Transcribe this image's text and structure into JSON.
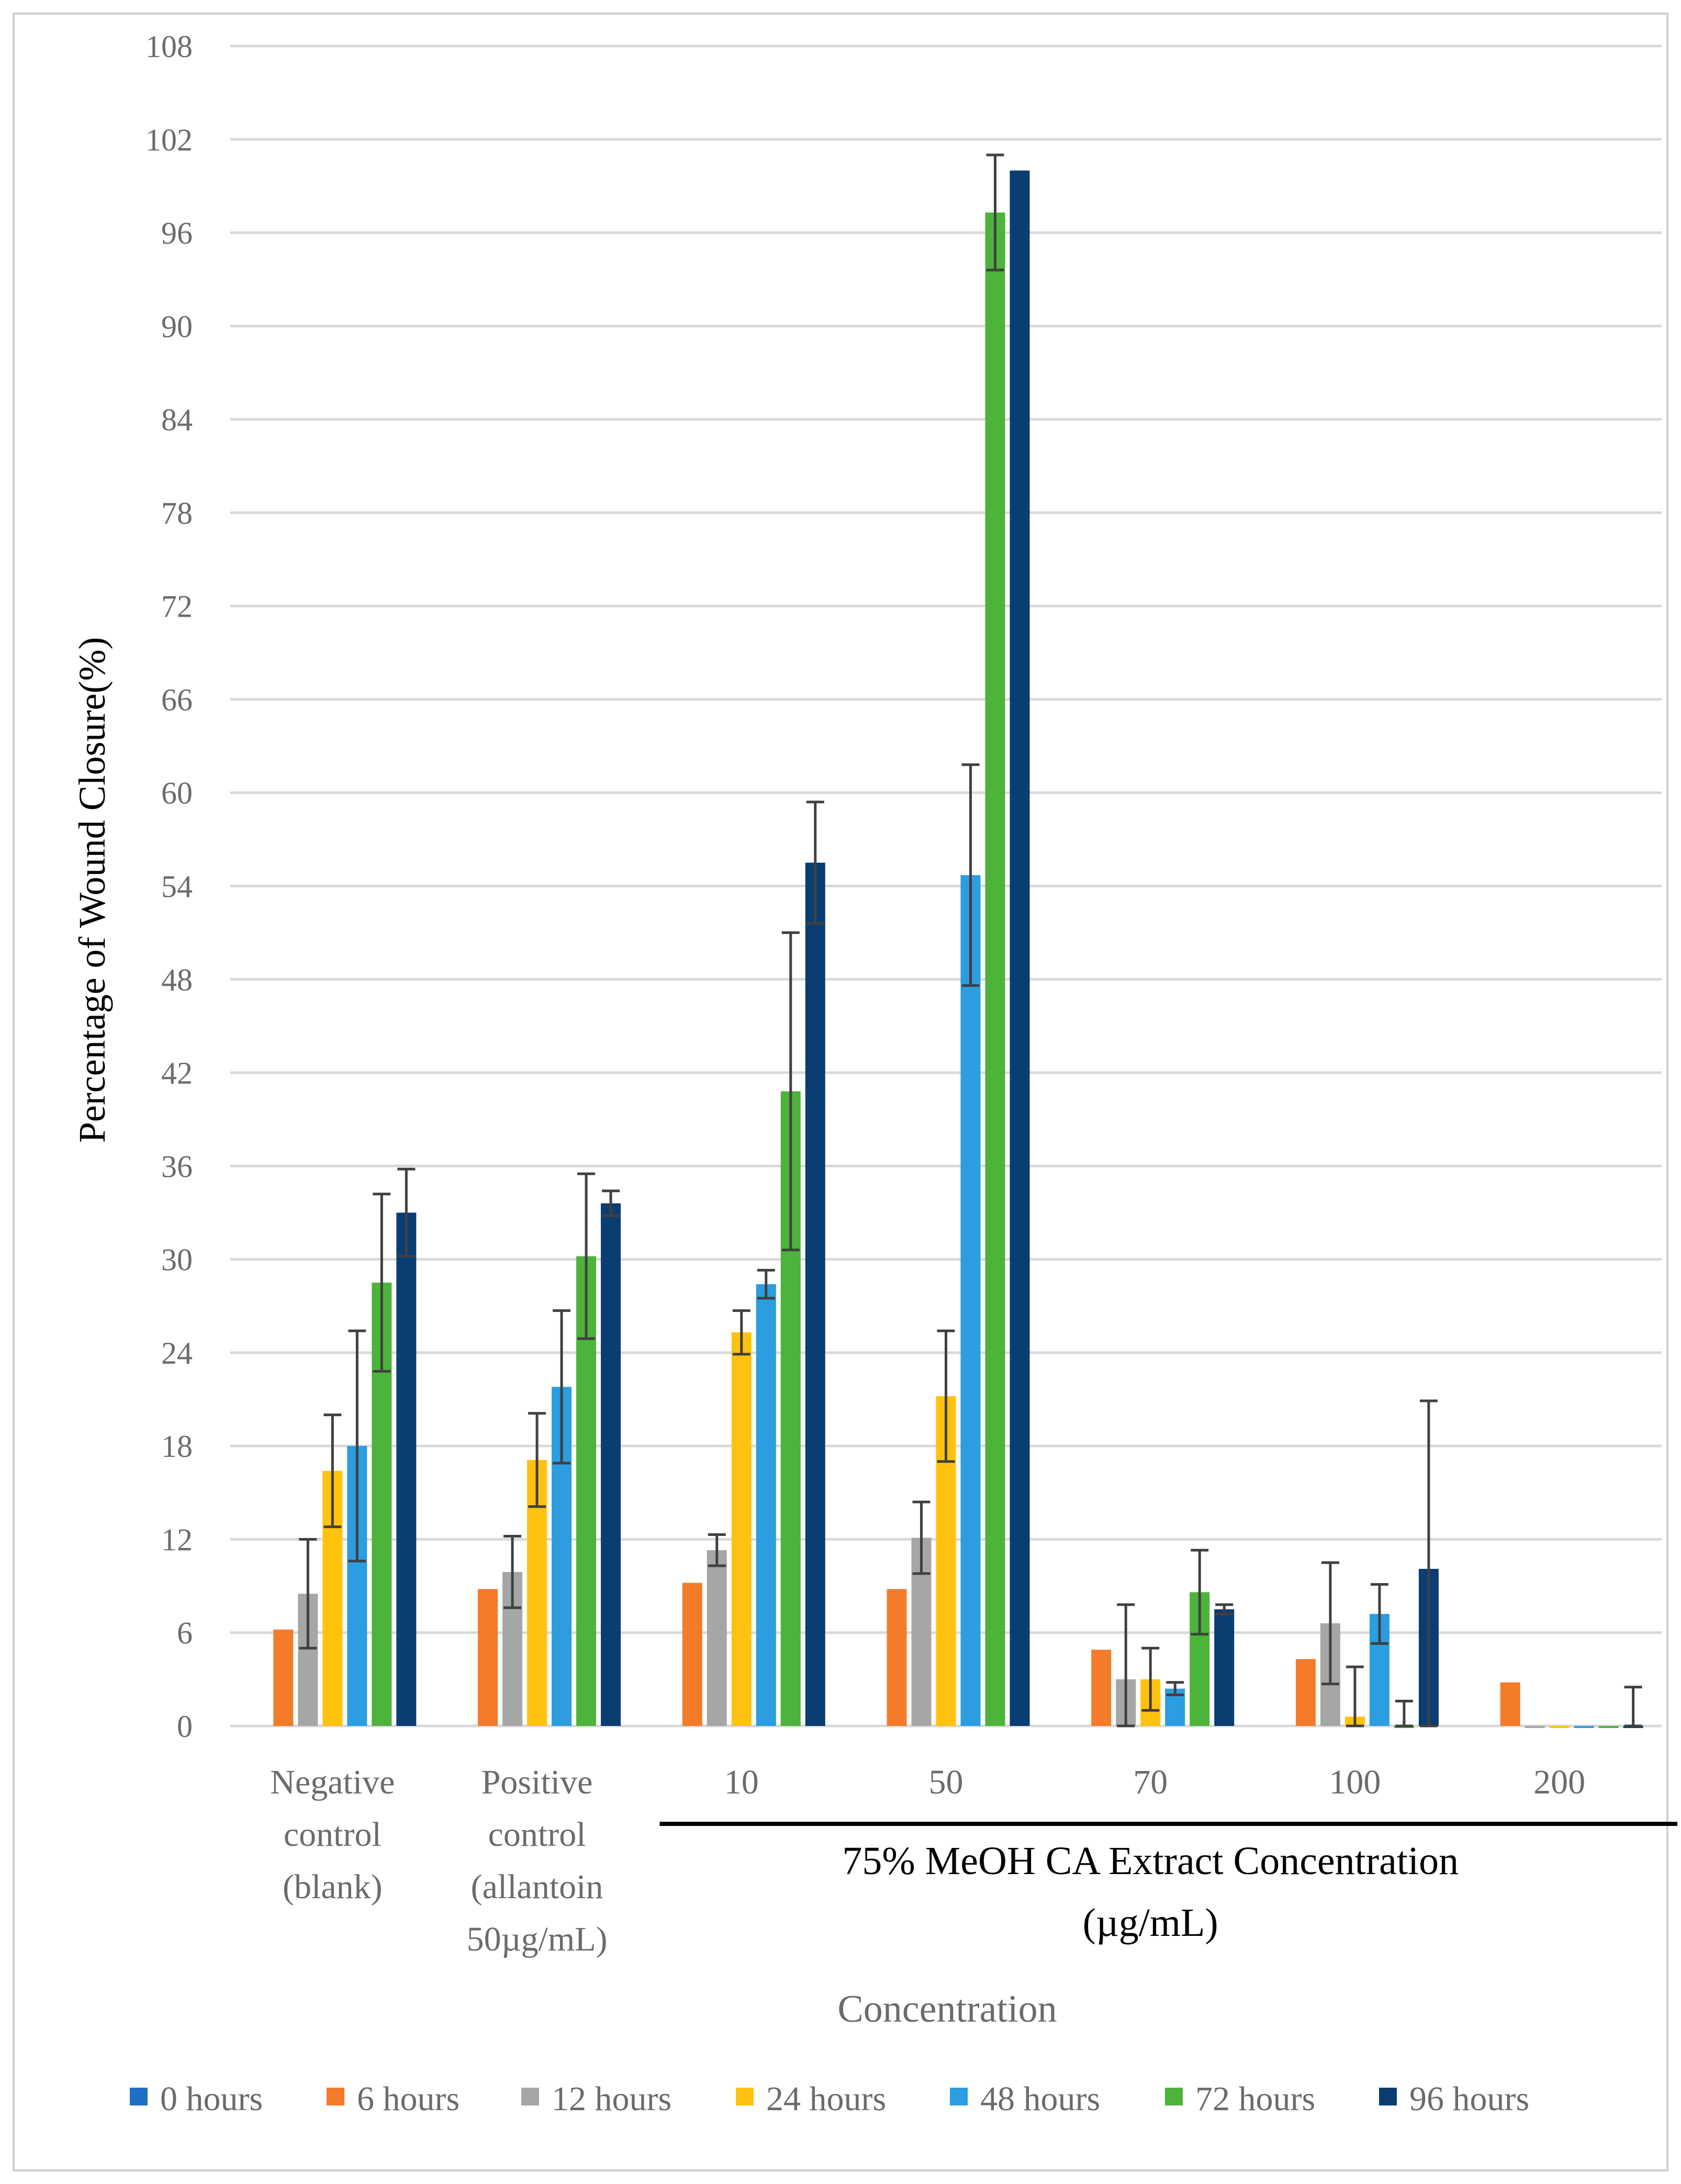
{
  "chart_data": {
    "type": "bar",
    "title": "",
    "xlabel": "Concentration",
    "ylabel": "Percentage of Wound Closure(%)",
    "ylim": [
      0,
      108
    ],
    "yticks": [
      0,
      6,
      12,
      18,
      24,
      30,
      36,
      42,
      48,
      54,
      60,
      66,
      72,
      78,
      84,
      90,
      96,
      102,
      108
    ],
    "grid": true,
    "legend_position": "bottom",
    "categories": [
      [
        "Negative",
        "control",
        "(blank)"
      ],
      [
        "Positive",
        "control",
        "(allantoin",
        "50µg/mL)"
      ],
      [
        "10"
      ],
      [
        "50"
      ],
      [
        "70"
      ],
      [
        "100"
      ],
      [
        "200"
      ]
    ],
    "group_annotation": {
      "lines": [
        "75% MeOH CA Extract Concentration",
        "(µg/mL)"
      ],
      "spans_categories": [
        2,
        6
      ]
    },
    "series": [
      {
        "name": "0 hours",
        "color": "#1f6fc5",
        "values": [
          0,
          0,
          0,
          0,
          0,
          0,
          0
        ],
        "errors": [
          0,
          0,
          0,
          0,
          0,
          0,
          0
        ]
      },
      {
        "name": "6 hours",
        "color": "#f47b2a",
        "values": [
          6.2,
          8.8,
          9.2,
          8.8,
          4.9,
          4.3,
          2.8
        ],
        "errors": [
          0,
          0,
          0,
          0,
          0,
          0,
          0
        ]
      },
      {
        "name": "12 hours",
        "color": "#a6a6a6",
        "values": [
          8.5,
          9.9,
          11.3,
          12.1,
          3.0,
          6.6,
          -0.1
        ],
        "errors": [
          3.5,
          2.3,
          1.0,
          2.3,
          4.8,
          3.9,
          0
        ]
      },
      {
        "name": "24 hours",
        "color": "#ffc20e",
        "values": [
          16.4,
          17.1,
          25.3,
          21.2,
          3.0,
          0.6,
          -0.1
        ],
        "errors": [
          3.6,
          3.0,
          1.4,
          4.2,
          2.0,
          3.2,
          0
        ]
      },
      {
        "name": "48 hours",
        "color": "#2b9de0",
        "values": [
          18.0,
          21.8,
          28.4,
          54.7,
          2.4,
          7.2,
          -0.1
        ],
        "errors": [
          7.4,
          4.9,
          0.9,
          7.1,
          0.4,
          1.9,
          0
        ]
      },
      {
        "name": "72 hours",
        "color": "#4cb33b",
        "values": [
          28.5,
          30.2,
          40.8,
          97.3,
          8.6,
          -0.1,
          -0.1
        ],
        "errors": [
          5.7,
          5.3,
          10.2,
          3.7,
          2.7,
          1.7,
          0
        ]
      },
      {
        "name": "96 hours",
        "color": "#0a3d72",
        "values": [
          33.0,
          33.6,
          55.5,
          100.0,
          7.5,
          10.1,
          -0.1
        ],
        "errors": [
          2.8,
          0.8,
          3.9,
          0,
          0.3,
          10.8,
          2.6
        ]
      }
    ]
  }
}
